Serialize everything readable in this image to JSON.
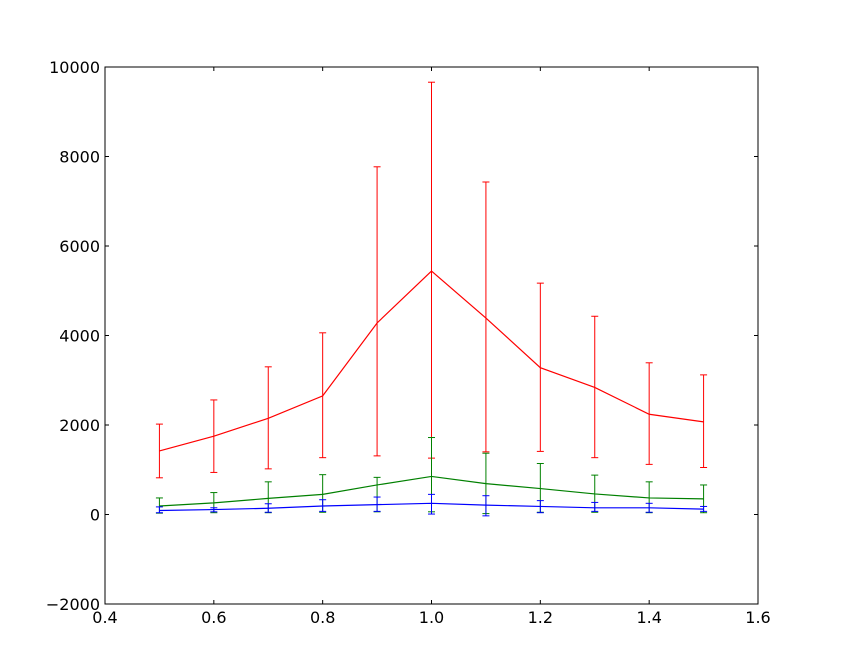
{
  "chart_data": {
    "type": "line",
    "title": "",
    "xlabel": "",
    "ylabel": "",
    "xlim": [
      0.4,
      1.6
    ],
    "ylim": [
      -2000,
      10000
    ],
    "xticks": [
      0.4,
      0.6,
      0.8,
      1.0,
      1.2,
      1.4,
      1.6
    ],
    "xtick_labels": [
      "0.4",
      "0.6",
      "0.8",
      "1.0",
      "1.2",
      "1.4",
      "1.6"
    ],
    "yticks": [
      -2000,
      0,
      2000,
      4000,
      6000,
      8000,
      10000
    ],
    "ytick_labels": [
      "−2000",
      "0",
      "2000",
      "4000",
      "6000",
      "8000",
      "10000"
    ],
    "grid": false,
    "legend": false,
    "x": [
      0.5,
      0.6,
      0.7,
      0.8,
      0.9,
      1.0,
      1.1,
      1.2,
      1.3,
      1.4,
      1.5
    ],
    "series": [
      {
        "color": "#ff0000",
        "values": [
          1420,
          1750,
          2150,
          2650,
          4280,
          5440,
          4390,
          3280,
          2840,
          2240,
          2070
        ],
        "err_low": [
          820,
          940,
          1020,
          1270,
          1310,
          1260,
          1400,
          1410,
          1270,
          1120,
          1050
        ],
        "err_high": [
          2020,
          2560,
          3300,
          4060,
          7770,
          9660,
          7430,
          5170,
          4430,
          3390,
          3120
        ]
      },
      {
        "color": "#008000",
        "values": [
          190,
          260,
          360,
          450,
          660,
          850,
          690,
          580,
          460,
          370,
          350
        ],
        "err_low": [
          30,
          40,
          40,
          50,
          60,
          60,
          20,
          50,
          50,
          40,
          40
        ],
        "err_high": [
          370,
          490,
          730,
          890,
          830,
          1720,
          1370,
          1140,
          880,
          730,
          660
        ]
      },
      {
        "color": "#0000ff",
        "values": [
          90,
          110,
          140,
          190,
          220,
          250,
          210,
          180,
          150,
          150,
          120
        ],
        "err_low": [
          40,
          60,
          50,
          70,
          70,
          10,
          -30,
          40,
          70,
          50,
          70
        ],
        "err_high": [
          170,
          150,
          240,
          330,
          390,
          450,
          420,
          310,
          270,
          250,
          180
        ]
      }
    ]
  }
}
